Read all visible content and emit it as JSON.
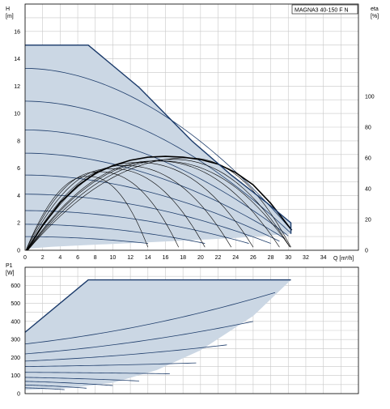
{
  "chart_data": [
    {
      "type": "line",
      "name": "head-efficiency",
      "title": "MAGNA3 40-150 F N",
      "xlabel": "Q [m³/h]",
      "ylabel": "H",
      "ylabel_unit": "[m]",
      "y2label": "eta",
      "y2label_unit": "[%]",
      "xlim": [
        0,
        38
      ],
      "ylim": [
        0,
        18
      ],
      "y2lim": [
        0,
        160
      ],
      "x_ticks": [
        0,
        2,
        4,
        6,
        8,
        10,
        12,
        14,
        16,
        18,
        20,
        22,
        24,
        26,
        28,
        30,
        32,
        34
      ],
      "y_ticks": [
        0,
        2,
        4,
        6,
        8,
        10,
        12,
        14,
        16
      ],
      "y2_ticks": [
        0,
        20,
        40,
        60,
        80,
        100
      ],
      "grid": true,
      "colors": {
        "fill": "#cbd7e4",
        "curve": "#1e3d6b",
        "envelope": "#1a3a6a",
        "eta": "#000000"
      },
      "envelope": {
        "x": [
          0,
          7.2,
          13,
          19,
          23.5,
          27.5,
          30.3,
          30.3,
          24,
          18,
          12,
          6,
          3,
          0
        ],
        "y": [
          15.0,
          15.0,
          11.9,
          8.0,
          5.5,
          3.5,
          2.0,
          1.2,
          0.9,
          0.7,
          0.52,
          0.35,
          0.25,
          0.1
        ]
      },
      "head_curves": [
        {
          "shutoff_head": 13.3,
          "max_flow": 30.2
        },
        {
          "shutoff_head": 10.9,
          "max_flow": 30.2
        },
        {
          "shutoff_head": 8.8,
          "max_flow": 30.0
        },
        {
          "shutoff_head": 7.1,
          "max_flow": 29.6
        },
        {
          "shutoff_head": 5.5,
          "max_flow": 29.0
        },
        {
          "shutoff_head": 4.1,
          "max_flow": 28.0
        },
        {
          "shutoff_head": 2.9,
          "max_flow": 25.5
        },
        {
          "shutoff_head": 1.9,
          "max_flow": 20.5
        },
        {
          "shutoff_head": 1.0,
          "max_flow": 14.0
        }
      ],
      "eta_curves": [
        {
          "start_x": 0.3,
          "peak_x": 15,
          "peak_eta": 58,
          "end_x": 30.2
        },
        {
          "start_x": 0.3,
          "peak_x": 18.3,
          "peak_eta": 60,
          "end_x": 30.3
        },
        {
          "start_x": 0.3,
          "peak_x": 16.5,
          "peak_eta": 59,
          "end_x": 30.2
        },
        {
          "start_x": 0.25,
          "peak_x": 14.5,
          "peak_eta": 58,
          "end_x": 29.0
        },
        {
          "start_x": 0.2,
          "peak_x": 12.5,
          "peak_eta": 57,
          "end_x": 26.0
        },
        {
          "start_x": 0.2,
          "peak_x": 11,
          "peak_eta": 55,
          "end_x": 23.5
        },
        {
          "start_x": 0.15,
          "peak_x": 9.5,
          "peak_eta": 53,
          "end_x": 20.5
        },
        {
          "start_x": 0.1,
          "peak_x": 8.2,
          "peak_eta": 51,
          "end_x": 17.5
        },
        {
          "start_x": 0.1,
          "peak_x": 7.0,
          "peak_eta": 48,
          "end_x": 14.0
        }
      ],
      "eta_envelope": {
        "x": [
          0.2,
          2,
          4,
          6,
          8,
          10,
          12,
          14,
          16,
          18,
          20,
          22,
          24,
          26,
          28,
          30.4
        ],
        "y": [
          0,
          16,
          31,
          42,
          50,
          55,
          58.5,
          60.5,
          61,
          60.5,
          59,
          56,
          50.5,
          42.5,
          30.5,
          13
        ]
      }
    },
    {
      "type": "line",
      "name": "power",
      "ylabel": "P1",
      "ylabel_unit": "[W]",
      "xlim": [
        0,
        38
      ],
      "ylim": [
        0,
        700
      ],
      "y_ticks": [
        0,
        100,
        200,
        300,
        400,
        500,
        600
      ],
      "grid": true,
      "colors": {
        "fill": "#cbd7e4",
        "curve": "#1e3d6b",
        "envelope": "#1a3a6a"
      },
      "envelope": {
        "x": [
          0,
          7.2,
          30.3,
          26,
          20,
          15,
          10,
          5,
          0
        ],
        "y": [
          340,
          630,
          630,
          430,
          240,
          130,
          60,
          30,
          20
        ]
      },
      "power_curves": [
        {
          "p0": 275,
          "end_x": 28.5,
          "end_p": 560
        },
        {
          "p0": 220,
          "end_x": 26.0,
          "end_p": 400
        },
        {
          "p0": 180,
          "end_x": 23.0,
          "end_p": 270
        },
        {
          "p0": 150,
          "end_x": 19.5,
          "end_p": 170
        },
        {
          "p0": 118,
          "end_x": 16.5,
          "end_p": 110
        },
        {
          "p0": 90,
          "end_x": 13.0,
          "end_p": 70
        },
        {
          "p0": 68,
          "end_x": 10.0,
          "end_p": 45
        },
        {
          "p0": 48,
          "end_x": 7.0,
          "end_p": 30
        },
        {
          "p0": 32,
          "end_x": 4.5,
          "end_p": 22
        }
      ]
    }
  ]
}
